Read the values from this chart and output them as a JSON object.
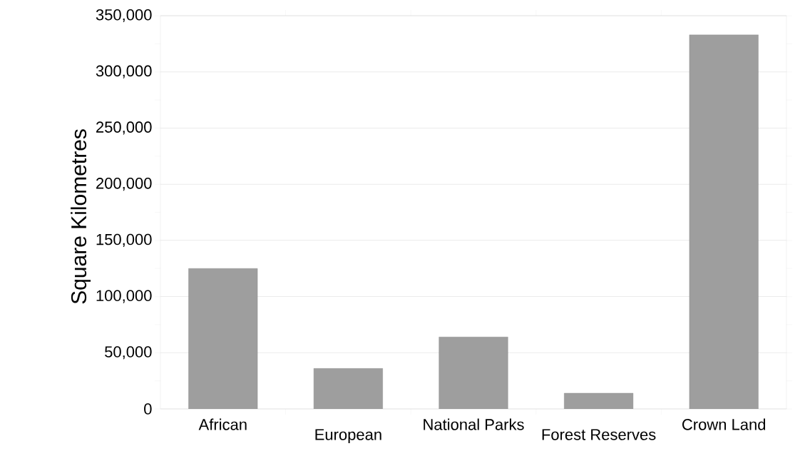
{
  "chart_data": {
    "type": "bar",
    "ylabel": "Square Kilometres",
    "categories": [
      "African",
      "European",
      "National Parks",
      "Forest Reserves",
      "Crown Land"
    ],
    "values": [
      125000,
      36000,
      64000,
      14000,
      333000
    ],
    "color": "#9e9e9e",
    "ylim": [
      0,
      350000
    ],
    "yticks": [
      0,
      {
        "value": 50000,
        "label": "50,000"
      },
      {
        "value": 100000,
        "label": "100,000"
      },
      {
        "value": 150000,
        "label": "150,000"
      },
      {
        "value": 200000,
        "label": "200,000"
      },
      {
        "value": 250000,
        "label": "250,000"
      },
      {
        "value": 300000,
        "label": "300,000"
      },
      {
        "value": 350000,
        "label": "350,000"
      }
    ],
    "grid": "y"
  }
}
